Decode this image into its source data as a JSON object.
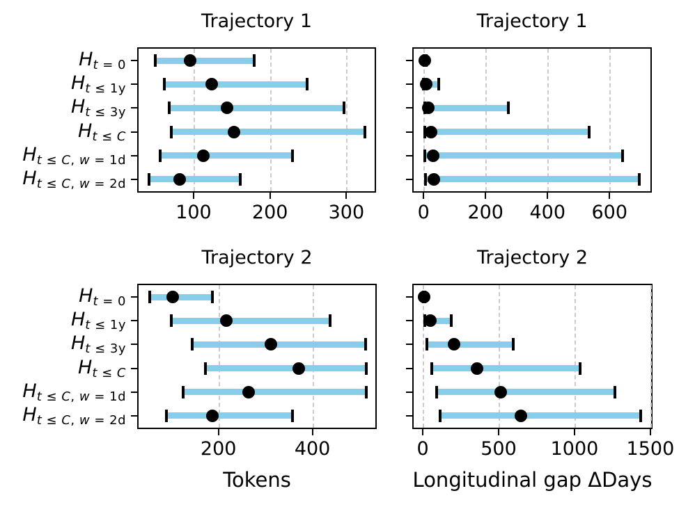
{
  "figure": {
    "background": "#ffffff"
  },
  "colors": {
    "bar": "#87CEEB",
    "grid": "#cbcbcb",
    "ink": "#000000"
  },
  "categories": [
    {
      "main": "H",
      "sub": "t = 0"
    },
    {
      "main": "H",
      "sub": "t ≤ 1y"
    },
    {
      "main": "H",
      "sub": "t ≤ 3y"
    },
    {
      "main": "H",
      "sub": "t ≤ C"
    },
    {
      "main": "H",
      "sub": "t ≤ C, w = 1d"
    },
    {
      "main": "H",
      "sub": "t ≤ C, w = 2d"
    }
  ],
  "chart_data": [
    {
      "type": "errorbar_range",
      "position": "top-left",
      "title": "Trajectory 1",
      "xlabel": "",
      "x_unit": "Tokens",
      "xlim": [
        28,
        337
      ],
      "xticks": [
        100,
        200,
        300
      ],
      "grid": "dashed-vertical",
      "show_category_labels": true,
      "rows": [
        {
          "min": 50,
          "dot": 95,
          "max": 179
        },
        {
          "min": 62,
          "dot": 124,
          "max": 249
        },
        {
          "min": 68,
          "dot": 144,
          "max": 297
        },
        {
          "min": 71,
          "dot": 153,
          "max": 324
        },
        {
          "min": 56,
          "dot": 113,
          "max": 229
        },
        {
          "min": 42,
          "dot": 82,
          "max": 161
        }
      ]
    },
    {
      "type": "errorbar_range",
      "position": "top-right",
      "title": "Trajectory 1",
      "xlabel": "",
      "x_unit": "Longitudinal gap ΔDays",
      "xlim": [
        -32,
        732
      ],
      "xticks": [
        0,
        200,
        400,
        600
      ],
      "grid": "dashed-vertical",
      "show_category_labels": false,
      "rows": [
        {
          "min": 2,
          "dot": 4,
          "max": 8
        },
        {
          "min": 0,
          "dot": 8,
          "max": 48
        },
        {
          "min": 4,
          "dot": 15,
          "max": 273
        },
        {
          "min": 5,
          "dot": 25,
          "max": 535
        },
        {
          "min": 5,
          "dot": 30,
          "max": 641
        },
        {
          "min": 7,
          "dot": 33,
          "max": 697
        }
      ]
    },
    {
      "type": "errorbar_range",
      "position": "bottom-left",
      "title": "Trajectory 2",
      "xlabel": "Tokens",
      "x_unit": "Tokens",
      "xlim": [
        30,
        534
      ],
      "xticks": [
        200,
        400
      ],
      "grid": "dashed-vertical",
      "show_category_labels": true,
      "rows": [
        {
          "min": 54,
          "dot": 103,
          "max": 187
        },
        {
          "min": 100,
          "dot": 217,
          "max": 438
        },
        {
          "min": 144,
          "dot": 312,
          "max": 513
        },
        {
          "min": 173,
          "dot": 371,
          "max": 514
        },
        {
          "min": 125,
          "dot": 264,
          "max": 514
        },
        {
          "min": 90,
          "dot": 187,
          "max": 357
        }
      ]
    },
    {
      "type": "errorbar_range",
      "position": "bottom-right",
      "title": "Trajectory 2",
      "xlabel": "Longitudinal gap ΔDays",
      "x_unit": "Longitudinal gap ΔDays",
      "xlim": [
        -60,
        1505
      ],
      "xticks": [
        0,
        500,
        1000,
        1500
      ],
      "grid": "dashed-vertical",
      "show_category_labels": false,
      "rows": [
        {
          "min": 2,
          "dot": 8,
          "max": 15
        },
        {
          "min": 14,
          "dot": 48,
          "max": 186
        },
        {
          "min": 29,
          "dot": 205,
          "max": 596
        },
        {
          "min": 58,
          "dot": 359,
          "max": 1039
        },
        {
          "min": 92,
          "dot": 512,
          "max": 1268
        },
        {
          "min": 115,
          "dot": 648,
          "max": 1437
        }
      ]
    }
  ]
}
